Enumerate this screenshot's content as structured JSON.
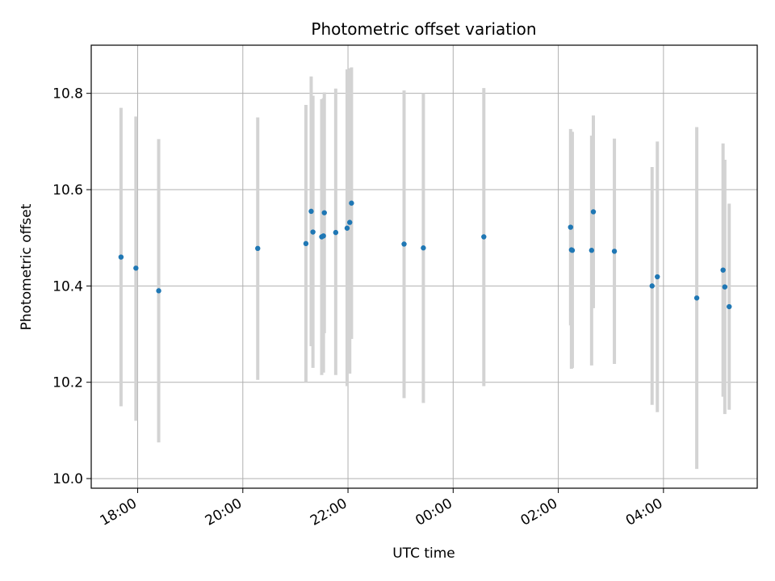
{
  "chart_data": {
    "type": "scatter",
    "title": "Photometric offset variation",
    "xlabel": "UTC time",
    "ylabel": "Photometric offset",
    "x_ticks": [
      "18:00",
      "20:00",
      "22:00",
      "00:00",
      "02:00",
      "04:00"
    ],
    "y_ticks": [
      "10.0",
      "10.2",
      "10.4",
      "10.6",
      "10.8"
    ],
    "xlim": [
      "17:07",
      "05:47"
    ],
    "ylim": [
      9.98,
      10.9
    ],
    "grid": true,
    "colors": {
      "points": "#1f77b4",
      "error_bars": "#d3d3d3",
      "grid": "#b0b0b0"
    },
    "points": [
      {
        "x": "17:41",
        "y": 10.46,
        "ylo": 10.15,
        "yhi": 10.77
      },
      {
        "x": "17:58",
        "y": 10.437,
        "ylo": 10.12,
        "yhi": 10.752
      },
      {
        "x": "18:24",
        "y": 10.39,
        "ylo": 10.075,
        "yhi": 10.705
      },
      {
        "x": "20:17",
        "y": 10.478,
        "ylo": 10.205,
        "yhi": 10.75
      },
      {
        "x": "21:12",
        "y": 10.488,
        "ylo": 10.2,
        "yhi": 10.776
      },
      {
        "x": "21:18",
        "y": 10.555,
        "ylo": 10.275,
        "yhi": 10.835
      },
      {
        "x": "21:20",
        "y": 10.512,
        "ylo": 10.23,
        "yhi": 10.795
      },
      {
        "x": "21:30",
        "y": 10.502,
        "ylo": 10.215,
        "yhi": 10.788
      },
      {
        "x": "21:32",
        "y": 10.504,
        "ylo": 10.22,
        "yhi": 10.79
      },
      {
        "x": "21:33",
        "y": 10.552,
        "ylo": 10.302,
        "yhi": 10.802
      },
      {
        "x": "21:46",
        "y": 10.511,
        "ylo": 10.215,
        "yhi": 10.81
      },
      {
        "x": "21:59",
        "y": 10.52,
        "ylo": 10.192,
        "yhi": 10.85
      },
      {
        "x": "22:02",
        "y": 10.532,
        "ylo": 10.218,
        "yhi": 10.852
      },
      {
        "x": "22:04",
        "y": 10.572,
        "ylo": 10.29,
        "yhi": 10.854
      },
      {
        "x": "23:04",
        "y": 10.487,
        "ylo": 10.167,
        "yhi": 10.806
      },
      {
        "x": "23:26",
        "y": 10.479,
        "ylo": 10.157,
        "yhi": 10.8
      },
      {
        "x": "00:35",
        "y": 10.502,
        "ylo": 10.192,
        "yhi": 10.811
      },
      {
        "x": "02:14",
        "y": 10.522,
        "ylo": 10.318,
        "yhi": 10.726
      },
      {
        "x": "02:15",
        "y": 10.475,
        "ylo": 10.228,
        "yhi": 10.72
      },
      {
        "x": "02:16",
        "y": 10.474,
        "ylo": 10.23,
        "yhi": 10.72
      },
      {
        "x": "02:38",
        "y": 10.474,
        "ylo": 10.235,
        "yhi": 10.712
      },
      {
        "x": "02:40",
        "y": 10.554,
        "ylo": 10.354,
        "yhi": 10.754
      },
      {
        "x": "03:04",
        "y": 10.472,
        "ylo": 10.238,
        "yhi": 10.706
      },
      {
        "x": "03:47",
        "y": 10.4,
        "ylo": 10.153,
        "yhi": 10.647
      },
      {
        "x": "03:53",
        "y": 10.419,
        "ylo": 10.138,
        "yhi": 10.7
      },
      {
        "x": "04:38",
        "y": 10.375,
        "ylo": 10.02,
        "yhi": 10.73
      },
      {
        "x": "05:08",
        "y": 10.433,
        "ylo": 10.17,
        "yhi": 10.696
      },
      {
        "x": "05:10",
        "y": 10.398,
        "ylo": 10.134,
        "yhi": 10.662
      },
      {
        "x": "05:15",
        "y": 10.357,
        "ylo": 10.143,
        "yhi": 10.571
      }
    ]
  }
}
